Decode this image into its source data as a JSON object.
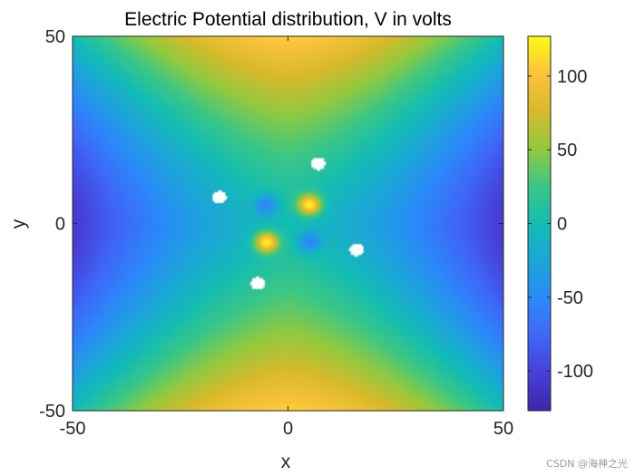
{
  "chart_data": {
    "type": "heatmap",
    "title": "Electric Potential distribution, V in volts",
    "xlabel": "x",
    "ylabel": "y",
    "xlim": [
      -50,
      50
    ],
    "ylim": [
      -50,
      50
    ],
    "x_ticks": [
      -50,
      0,
      50
    ],
    "x_tick_labels": [
      "-50",
      "0",
      "50"
    ],
    "y_ticks": [
      -50,
      0,
      50
    ],
    "y_tick_labels": [
      "-50",
      "0",
      "50"
    ],
    "colorbar": {
      "min": -127,
      "max": 127,
      "ticks": [
        -100,
        -50,
        0,
        50,
        100
      ],
      "tick_labels": [
        "-100",
        "-50",
        "0",
        "50",
        "100"
      ],
      "colormap": "parula"
    },
    "boundary_potential": {
      "top_bottom_edges": 120,
      "left_right_edges": -120,
      "center": 0
    },
    "point_features": [
      {
        "x": 5,
        "y": 5,
        "potential": 127
      },
      {
        "x": -5,
        "y": -5,
        "potential": 127
      },
      {
        "x": -5,
        "y": 5,
        "potential": -55
      },
      {
        "x": 5,
        "y": -5,
        "potential": -55
      }
    ],
    "singular_points": [
      {
        "x": 7,
        "y": 16
      },
      {
        "x": -16,
        "y": 7
      },
      {
        "x": 16,
        "y": -7
      },
      {
        "x": -7,
        "y": -16
      }
    ],
    "grid": false
  },
  "watermark": "CSDN @海神之光"
}
